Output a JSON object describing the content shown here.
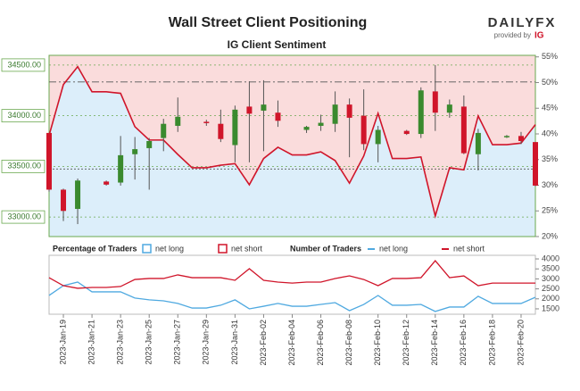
{
  "chart_data": [
    {
      "type": "candlestick",
      "title": "Wall Street Client Positioning",
      "subtitle": "IG Client Sentiment",
      "brand": "DAILYFX",
      "brand_note": "provided by",
      "brand_partner": "IG",
      "categories": [
        null,
        "2023-Jan-19",
        null,
        "2023-Jan-21",
        null,
        "2023-Jan-23",
        null,
        "2023-Jan-25",
        null,
        "2023-Jan-27",
        null,
        "2023-Jan-29",
        null,
        "2023-Jan-31",
        null,
        "2023-Feb-02",
        null,
        "2023-Feb-04",
        null,
        "2023-Feb-06",
        null,
        "2023-Feb-08",
        null,
        "2023-Feb-10",
        null,
        "2023-Feb-12",
        null,
        "2023-Feb-14",
        null,
        "2023-Feb-16",
        null,
        "2023-Feb-18",
        null,
        "2023-Feb-20",
        null
      ],
      "open": [
        33830,
        33270,
        33080,
        null,
        33350,
        33340,
        33620,
        33680,
        33780,
        33900,
        null,
        33940,
        33920,
        33710,
        34090,
        34050,
        34030,
        null,
        33860,
        33900,
        33920,
        34110,
        34000,
        33720,
        null,
        33850,
        33820,
        34240,
        34030,
        34090,
        33620,
        null,
        33790,
        33800,
        33740
      ],
      "high": [
        33830,
        33280,
        33380,
        null,
        33360,
        33800,
        33790,
        33780,
        33970,
        34180,
        null,
        33960,
        34060,
        34100,
        34340,
        34350,
        34150,
        null,
        33900,
        34010,
        34240,
        34170,
        34260,
        33900,
        null,
        33860,
        34280,
        34500,
        34160,
        34200,
        33870,
        null,
        33810,
        33840,
        33740
      ],
      "low": [
        33250,
        32960,
        32930,
        null,
        33310,
        33310,
        33370,
        33270,
        33650,
        33840,
        null,
        33900,
        33740,
        33540,
        33540,
        33650,
        33890,
        null,
        33830,
        33850,
        33840,
        33590,
        33660,
        33540,
        null,
        33810,
        33780,
        33850,
        33980,
        33620,
        33460,
        null,
        33780,
        33720,
        33300
      ],
      "close": [
        33270,
        33060,
        33360,
        null,
        33320,
        33610,
        33670,
        33750,
        33920,
        33990,
        null,
        33930,
        33770,
        34060,
        34020,
        34110,
        33950,
        null,
        33890,
        33930,
        34110,
        33980,
        33720,
        33860,
        null,
        33820,
        34250,
        34030,
        34110,
        33630,
        33830,
        null,
        33800,
        33750,
        33310
      ],
      "up_color": "#3a8a2e",
      "down_color": "#d0152a",
      "ylim": [
        32807,
        34596
      ],
      "yticks": [
        {
          "value": 33000,
          "label": "33000.00"
        },
        {
          "value": 33500,
          "label": "33500.00"
        },
        {
          "value": 34000,
          "label": "34000.00"
        },
        {
          "value": 34500,
          "label": "34500.00"
        }
      ],
      "reference_lines": [
        34333,
        33474
      ],
      "y2lim": [
        20,
        55.3
      ],
      "y2ticks": [
        {
          "value": 20,
          "label": "20%"
        },
        {
          "value": 25,
          "label": "25%"
        },
        {
          "value": 30,
          "label": "30%"
        },
        {
          "value": 35,
          "label": "35%"
        },
        {
          "value": 40,
          "label": "40%"
        },
        {
          "value": 45,
          "label": "45%"
        },
        {
          "value": 50,
          "label": "50%"
        },
        {
          "value": 55,
          "label": "55%"
        }
      ],
      "legend_title": "Percentage of Traders",
      "series": [
        {
          "name": "net long",
          "color": "#4fa9e0"
        },
        {
          "name": "net short",
          "color": "#d0152a",
          "axis": "y2",
          "values": [
            39.7,
            49.6,
            53.1,
            48.2,
            48.2,
            47.9,
            41.4,
            38.8,
            38.8,
            36.0,
            33.4,
            33.4,
            33.9,
            34.2,
            30.1,
            35.2,
            37.4,
            35.9,
            35.9,
            36.5,
            34.8,
            30.4,
            35.7,
            44.0,
            35.2,
            35.2,
            35.5,
            24.0,
            33.4,
            33.0,
            43.5,
            37.9,
            37.9,
            38.2,
            41.8
          ]
        }
      ]
    },
    {
      "type": "line",
      "legend_title": "Number of Traders",
      "ylim": [
        1230,
        4180
      ],
      "yticks": [
        1500,
        2000,
        2500,
        3000,
        3500,
        4000
      ],
      "series": [
        {
          "name": "net long",
          "color": "#4fa9e0",
          "values": [
            2170,
            2660,
            2840,
            2350,
            2350,
            2350,
            2040,
            1950,
            1900,
            1770,
            1540,
            1540,
            1680,
            1950,
            1500,
            1630,
            1770,
            1630,
            1630,
            1720,
            1810,
            1410,
            1720,
            2170,
            1680,
            1680,
            1720,
            1370,
            1590,
            1590,
            2130,
            1770,
            1770,
            1770,
            2080
          ]
        },
        {
          "name": "net short",
          "color": "#d0152a",
          "values": [
            3060,
            2660,
            2530,
            2570,
            2570,
            2620,
            2970,
            3020,
            3020,
            3200,
            3060,
            3060,
            3060,
            2930,
            3510,
            2930,
            2840,
            2790,
            2840,
            2840,
            3020,
            3150,
            2970,
            2660,
            3020,
            3020,
            3060,
            3910,
            3060,
            3150,
            2660,
            2790,
            2790,
            2790,
            2790
          ]
        }
      ]
    }
  ]
}
